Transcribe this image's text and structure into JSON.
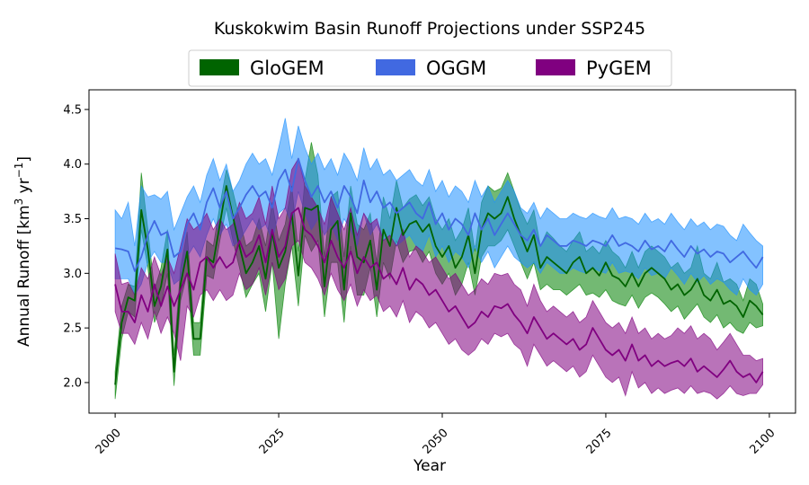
{
  "chart_data": {
    "type": "area",
    "title": "Kuskokwim Basin Runoff Projections under SSP245",
    "xlabel": "Year",
    "ylabel_main": "Annual Runoff [km",
    "ylabel_sup1": "3",
    "ylabel_mid": " yr",
    "ylabel_sup2": "−1",
    "ylabel_end": "]",
    "xlim": [
      1996,
      2104
    ],
    "ylim": [
      1.72,
      4.68
    ],
    "x_ticks": [
      2000,
      2025,
      2050,
      2075,
      2100
    ],
    "y_ticks": [
      2.0,
      2.5,
      3.0,
      3.5,
      4.0,
      4.5
    ],
    "y_tick_labels": [
      "2.0",
      "2.5",
      "3.0",
      "3.5",
      "4.0",
      "4.5"
    ],
    "legend_position": "top-center",
    "x_start": 2000,
    "series": [
      {
        "name": "GloGEM",
        "line_color": "#006400",
        "fill_color": "#008000",
        "mean": [
          1.98,
          2.55,
          2.78,
          2.75,
          3.58,
          3.22,
          2.7,
          2.88,
          3.22,
          2.1,
          2.9,
          3.2,
          2.4,
          2.4,
          3.15,
          3.1,
          3.45,
          3.8,
          3.52,
          3.25,
          3.0,
          3.1,
          3.25,
          2.95,
          3.38,
          3.05,
          3.2,
          3.55,
          2.98,
          3.6,
          3.58,
          3.62,
          2.88,
          3.4,
          3.48,
          2.85,
          3.55,
          3.15,
          3.1,
          3.3,
          2.85,
          3.4,
          3.25,
          3.6,
          3.35,
          3.45,
          3.48,
          3.38,
          3.45,
          3.25,
          3.15,
          3.25,
          3.05,
          3.15,
          3.35,
          3.0,
          3.4,
          3.55,
          3.5,
          3.55,
          3.7,
          3.5,
          3.35,
          3.2,
          3.35,
          3.05,
          3.15,
          3.1,
          3.05,
          3.0,
          3.1,
          3.15,
          3.0,
          3.05,
          2.98,
          3.1,
          2.98,
          2.95,
          2.88,
          3.0,
          2.88,
          3.0,
          3.05,
          3.0,
          2.95,
          2.85,
          2.9,
          2.8,
          2.85,
          2.95,
          2.8,
          2.75,
          2.85,
          2.72,
          2.75,
          2.7,
          2.6,
          2.75,
          2.7,
          2.62
        ],
        "lower": [
          1.85,
          2.4,
          2.65,
          2.6,
          3.4,
          3.05,
          2.55,
          2.7,
          3.0,
          1.97,
          2.75,
          3.0,
          2.25,
          2.25,
          2.98,
          2.95,
          3.3,
          3.6,
          3.3,
          3.05,
          2.78,
          2.9,
          3.0,
          2.65,
          3.1,
          2.4,
          2.9,
          3.25,
          2.7,
          3.35,
          3.2,
          3.3,
          2.6,
          3.1,
          3.1,
          2.55,
          3.25,
          2.8,
          2.8,
          3.05,
          2.6,
          3.1,
          2.95,
          3.3,
          3.1,
          3.2,
          3.22,
          3.1,
          3.2,
          3.0,
          2.9,
          3.0,
          2.8,
          2.9,
          3.1,
          2.8,
          3.15,
          3.25,
          3.25,
          3.3,
          3.4,
          3.25,
          3.1,
          2.95,
          3.1,
          2.85,
          2.9,
          2.85,
          2.85,
          2.8,
          2.85,
          2.9,
          2.8,
          2.82,
          2.78,
          2.85,
          2.75,
          2.72,
          2.7,
          2.8,
          2.68,
          2.78,
          2.82,
          2.78,
          2.72,
          2.65,
          2.7,
          2.58,
          2.65,
          2.72,
          2.6,
          2.55,
          2.62,
          2.5,
          2.55,
          2.48,
          2.45,
          2.55,
          2.5,
          2.52
        ],
        "upper": [
          2.1,
          2.7,
          2.9,
          2.88,
          3.92,
          3.4,
          2.85,
          3.05,
          3.4,
          2.25,
          3.05,
          3.38,
          2.55,
          2.55,
          3.3,
          3.25,
          3.62,
          3.95,
          3.75,
          3.5,
          3.25,
          3.3,
          3.5,
          3.25,
          3.65,
          3.3,
          3.45,
          3.8,
          3.2,
          3.85,
          4.2,
          3.9,
          3.15,
          3.7,
          3.75,
          3.15,
          3.8,
          3.45,
          3.4,
          3.55,
          3.1,
          3.7,
          3.5,
          3.85,
          3.6,
          3.68,
          3.72,
          3.62,
          3.7,
          3.5,
          3.4,
          3.5,
          3.3,
          3.4,
          3.6,
          3.2,
          3.65,
          3.8,
          3.75,
          3.78,
          3.92,
          3.75,
          3.58,
          3.45,
          3.58,
          3.25,
          3.38,
          3.32,
          3.25,
          3.2,
          3.3,
          3.38,
          3.2,
          3.25,
          3.18,
          3.3,
          3.2,
          3.15,
          3.05,
          3.2,
          3.05,
          3.2,
          3.25,
          3.2,
          3.15,
          3.05,
          3.1,
          3.0,
          3.05,
          3.25,
          3.0,
          2.95,
          3.1,
          2.92,
          2.95,
          2.9,
          2.75,
          2.95,
          2.9,
          2.72
        ]
      },
      {
        "name": "OGGM",
        "line_color": "#4169e1",
        "fill_color": "#1e90ff",
        "mean": [
          3.23,
          3.22,
          3.2,
          3.02,
          3.15,
          3.35,
          3.48,
          3.35,
          3.38,
          3.15,
          3.2,
          3.45,
          3.55,
          3.4,
          3.65,
          3.78,
          3.6,
          3.75,
          3.5,
          3.6,
          3.72,
          3.8,
          3.7,
          3.75,
          3.6,
          3.85,
          3.95,
          3.75,
          4.05,
          3.85,
          3.7,
          3.8,
          3.65,
          3.75,
          3.6,
          3.8,
          3.7,
          3.55,
          3.85,
          3.65,
          3.75,
          3.6,
          3.65,
          3.55,
          3.6,
          3.65,
          3.55,
          3.5,
          3.65,
          3.45,
          3.55,
          3.4,
          3.5,
          3.45,
          3.35,
          3.55,
          3.4,
          3.5,
          3.35,
          3.45,
          3.55,
          3.45,
          3.35,
          3.3,
          3.4,
          3.25,
          3.35,
          3.3,
          3.25,
          3.25,
          3.3,
          3.28,
          3.25,
          3.3,
          3.28,
          3.25,
          3.35,
          3.25,
          3.28,
          3.25,
          3.2,
          3.3,
          3.22,
          3.25,
          3.2,
          3.3,
          3.22,
          3.15,
          3.25,
          3.18,
          3.22,
          3.15,
          3.2,
          3.18,
          3.1,
          3.15,
          3.2,
          3.12,
          3.05,
          3.15
        ],
        "lower": [
          2.95,
          2.95,
          2.95,
          2.8,
          2.9,
          3.1,
          3.2,
          3.1,
          3.1,
          2.9,
          2.95,
          3.15,
          3.25,
          3.15,
          3.35,
          3.5,
          3.35,
          3.45,
          3.25,
          3.3,
          3.4,
          3.5,
          3.4,
          3.45,
          3.3,
          3.55,
          3.6,
          3.45,
          3.75,
          3.55,
          3.4,
          3.5,
          3.35,
          3.45,
          3.3,
          3.5,
          3.4,
          3.25,
          3.55,
          3.35,
          3.45,
          3.3,
          3.35,
          3.25,
          3.3,
          3.35,
          3.25,
          3.2,
          3.35,
          3.15,
          3.25,
          3.1,
          3.2,
          3.15,
          3.05,
          3.25,
          3.1,
          3.2,
          3.05,
          3.15,
          3.25,
          3.15,
          3.1,
          3.05,
          3.1,
          3.0,
          3.1,
          3.05,
          3.0,
          3.0,
          3.05,
          3.02,
          3.0,
          3.05,
          3.02,
          3.0,
          3.1,
          3.0,
          3.02,
          3.0,
          2.95,
          3.05,
          2.98,
          3.0,
          2.95,
          3.05,
          2.98,
          2.9,
          3.0,
          2.92,
          2.98,
          2.9,
          2.95,
          2.92,
          2.85,
          2.8,
          2.95,
          2.85,
          2.8,
          2.9
        ],
        "upper": [
          3.58,
          3.5,
          3.65,
          3.25,
          3.8,
          3.7,
          3.72,
          3.68,
          3.75,
          3.4,
          3.55,
          3.7,
          3.8,
          3.65,
          3.9,
          4.05,
          3.85,
          4.0,
          3.75,
          3.85,
          4.0,
          4.1,
          4.0,
          4.05,
          3.9,
          4.15,
          4.42,
          4.05,
          4.35,
          4.15,
          4.0,
          4.1,
          3.95,
          4.05,
          3.9,
          4.1,
          4.0,
          3.85,
          4.15,
          3.95,
          4.05,
          3.9,
          3.95,
          3.85,
          3.9,
          3.95,
          3.85,
          3.8,
          3.95,
          3.75,
          3.85,
          3.7,
          3.8,
          3.75,
          3.65,
          3.85,
          3.7,
          3.8,
          3.65,
          3.75,
          3.85,
          3.75,
          3.6,
          3.55,
          3.65,
          3.5,
          3.6,
          3.55,
          3.5,
          3.5,
          3.55,
          3.52,
          3.5,
          3.55,
          3.52,
          3.5,
          3.6,
          3.5,
          3.52,
          3.5,
          3.45,
          3.55,
          3.47,
          3.5,
          3.45,
          3.55,
          3.47,
          3.4,
          3.5,
          3.43,
          3.47,
          3.4,
          3.45,
          3.43,
          3.35,
          3.3,
          3.45,
          3.37,
          3.3,
          3.25
        ]
      },
      {
        "name": "PyGEM",
        "line_color": "#800080",
        "fill_color": "#800080",
        "mean": [
          2.9,
          2.65,
          2.65,
          2.55,
          2.8,
          2.65,
          2.9,
          2.7,
          2.88,
          2.7,
          2.85,
          3.0,
          2.85,
          3.1,
          3.15,
          3.05,
          3.15,
          3.05,
          3.1,
          3.3,
          3.15,
          3.2,
          3.35,
          3.1,
          3.4,
          3.15,
          3.25,
          3.55,
          3.6,
          3.4,
          3.35,
          3.25,
          3.1,
          3.3,
          3.15,
          3.05,
          3.2,
          3.0,
          3.15,
          3.05,
          3.1,
          2.95,
          3.0,
          2.9,
          3.05,
          2.85,
          2.95,
          2.9,
          2.8,
          2.85,
          2.75,
          2.65,
          2.7,
          2.6,
          2.5,
          2.55,
          2.65,
          2.6,
          2.7,
          2.68,
          2.72,
          2.62,
          2.55,
          2.45,
          2.6,
          2.5,
          2.4,
          2.45,
          2.4,
          2.35,
          2.4,
          2.3,
          2.35,
          2.5,
          2.4,
          2.3,
          2.25,
          2.3,
          2.2,
          2.35,
          2.2,
          2.25,
          2.15,
          2.2,
          2.15,
          2.18,
          2.2,
          2.15,
          2.22,
          2.1,
          2.15,
          2.1,
          2.05,
          2.12,
          2.2,
          2.1,
          2.05,
          2.08,
          2.0,
          2.1
        ],
        "lower": [
          2.65,
          2.45,
          2.45,
          2.35,
          2.55,
          2.4,
          2.65,
          2.45,
          2.6,
          2.45,
          2.2,
          2.7,
          2.6,
          2.8,
          2.85,
          2.75,
          2.85,
          2.75,
          2.8,
          3.0,
          2.85,
          2.9,
          3.05,
          2.8,
          3.1,
          2.85,
          2.95,
          3.25,
          3.3,
          3.1,
          3.05,
          2.95,
          2.8,
          3.0,
          2.85,
          2.75,
          2.9,
          2.7,
          2.85,
          2.75,
          2.8,
          2.65,
          2.7,
          2.6,
          2.75,
          2.55,
          2.65,
          2.6,
          2.5,
          2.55,
          2.45,
          2.35,
          2.4,
          2.3,
          2.25,
          2.3,
          2.4,
          2.35,
          2.45,
          2.42,
          2.45,
          2.35,
          2.3,
          2.15,
          2.35,
          2.25,
          2.15,
          2.2,
          2.15,
          2.1,
          2.15,
          2.05,
          2.1,
          2.25,
          2.15,
          2.05,
          2.0,
          2.05,
          1.88,
          2.1,
          1.95,
          2.0,
          1.9,
          1.95,
          1.9,
          1.93,
          1.95,
          1.9,
          1.97,
          1.9,
          1.92,
          1.9,
          1.85,
          1.9,
          1.97,
          1.9,
          1.88,
          1.9,
          1.9,
          1.98
        ],
        "upper": [
          3.18,
          2.9,
          2.92,
          2.8,
          3.05,
          2.95,
          3.15,
          2.98,
          3.15,
          3.0,
          3.25,
          3.5,
          3.4,
          3.45,
          3.55,
          3.4,
          3.5,
          3.4,
          3.45,
          3.65,
          3.5,
          3.55,
          3.7,
          3.45,
          3.8,
          3.5,
          3.6,
          3.95,
          4.05,
          3.8,
          3.7,
          3.6,
          3.45,
          3.7,
          3.55,
          3.4,
          3.6,
          3.35,
          3.55,
          3.45,
          3.5,
          3.3,
          3.35,
          3.25,
          3.4,
          3.15,
          3.25,
          3.2,
          3.1,
          3.15,
          3.05,
          2.95,
          3.0,
          2.9,
          2.8,
          2.85,
          2.95,
          2.9,
          3.0,
          2.98,
          3.0,
          2.9,
          2.85,
          2.7,
          2.9,
          2.75,
          2.65,
          2.7,
          2.65,
          2.6,
          2.65,
          2.55,
          2.6,
          2.75,
          2.65,
          2.55,
          2.5,
          2.55,
          2.45,
          2.6,
          2.45,
          2.5,
          2.4,
          2.45,
          2.4,
          2.43,
          2.5,
          2.45,
          2.52,
          2.4,
          2.45,
          2.4,
          2.3,
          2.37,
          2.45,
          2.35,
          2.25,
          2.25,
          2.2,
          2.22
        ]
      }
    ]
  }
}
